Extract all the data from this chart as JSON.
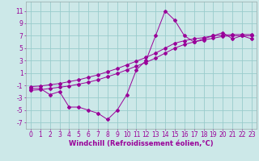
{
  "title": "",
  "xlabel": "Windchill (Refroidissement éolien,°C)",
  "bg_color": "#cce8e8",
  "grid_color": "#99cccc",
  "line_color": "#990099",
  "spine_color": "#99aaaa",
  "xlim": [
    -0.5,
    23.5
  ],
  "ylim": [
    -8,
    12.5
  ],
  "yticks": [
    -7,
    -5,
    -3,
    -1,
    1,
    3,
    5,
    7,
    9,
    11
  ],
  "xticks": [
    0,
    1,
    2,
    3,
    4,
    5,
    6,
    7,
    8,
    9,
    10,
    11,
    12,
    13,
    14,
    15,
    16,
    17,
    18,
    19,
    20,
    21,
    22,
    23
  ],
  "x": [
    0,
    1,
    2,
    3,
    4,
    5,
    6,
    7,
    8,
    9,
    10,
    11,
    12,
    13,
    14,
    15,
    16,
    17,
    18,
    19,
    20,
    21,
    22,
    23
  ],
  "y_jagged": [
    -1.5,
    -1.5,
    -2.5,
    -2.0,
    -4.5,
    -4.5,
    -5.0,
    -5.5,
    -6.5,
    -5.0,
    -2.5,
    1.5,
    3.0,
    7.0,
    11.0,
    9.5,
    7.0,
    6.0,
    6.5,
    7.0,
    7.5,
    6.5,
    7.0,
    6.5
  ],
  "y_line1": [
    -1.8,
    -1.7,
    -1.5,
    -1.3,
    -1.1,
    -0.8,
    -0.5,
    -0.1,
    0.4,
    0.9,
    1.5,
    2.1,
    2.7,
    3.4,
    4.2,
    5.0,
    5.6,
    6.0,
    6.3,
    6.6,
    6.9,
    7.0,
    7.0,
    7.0
  ],
  "y_line2": [
    -1.2,
    -1.1,
    -0.9,
    -0.7,
    -0.4,
    -0.1,
    0.3,
    0.7,
    1.2,
    1.7,
    2.3,
    2.9,
    3.5,
    4.2,
    5.0,
    5.8,
    6.2,
    6.5,
    6.7,
    7.0,
    7.1,
    7.2,
    7.2,
    7.2
  ],
  "tick_fontsize": 5.5,
  "xlabel_fontsize": 6.0
}
